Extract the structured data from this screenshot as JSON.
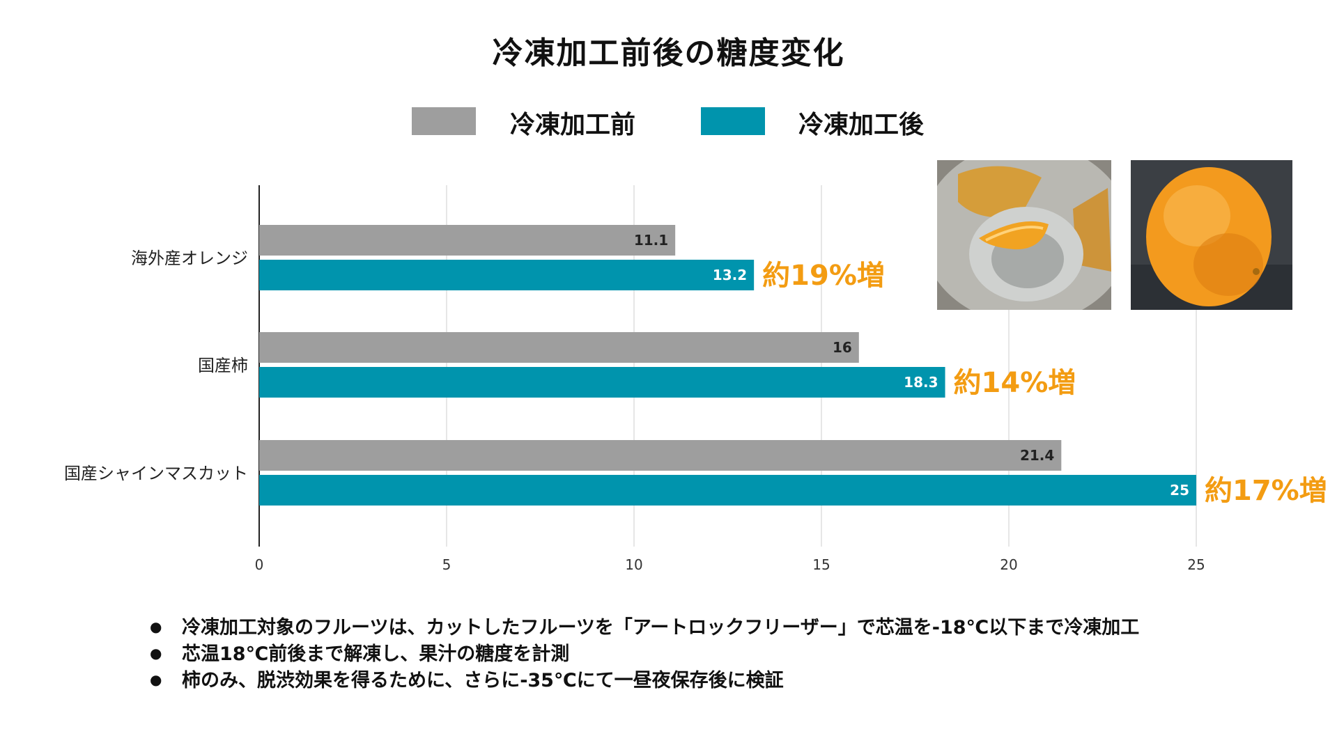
{
  "chart_data": {
    "type": "bar",
    "orientation": "horizontal",
    "title": "冷凍加工前後の糖度変化",
    "categories": [
      "海外産オレンジ",
      "国産柿",
      "国産シャインマスカット"
    ],
    "series": [
      {
        "name": "冷凍加工前",
        "color": "#9e9e9e",
        "values": [
          11.1,
          16,
          21.4
        ],
        "labels": [
          "11.1",
          "16",
          "21.4"
        ]
      },
      {
        "name": "冷凍加工後",
        "color": "#0094ad",
        "values": [
          13.2,
          18.3,
          25
        ],
        "labels": [
          "13.2",
          "18.3",
          "25"
        ]
      }
    ],
    "annotations": [
      "約19%増",
      "約14%増",
      "約17%増"
    ],
    "xlim": [
      0,
      27.5
    ],
    "xticks": [
      0,
      5,
      10,
      15,
      20,
      25
    ],
    "grid": true,
    "legend": "top-center",
    "annotation_color": "#f39c12"
  },
  "photos": {
    "frozen_orange_bowl": "frozen-orange-in-bowl-photo",
    "whole_orange": "whole-orange-photo"
  },
  "notes": [
    "冷凍加工対象のフルーツは、カットしたフルーツを「アートロックフリーザー」で芯温を-18℃以下まで冷凍加工",
    "芯温18℃前後まで解凍し、果汁の糖度を計測",
    "柿のみ、脱渋効果を得るために、さらに-35℃にて一昼夜保存後に検証"
  ]
}
